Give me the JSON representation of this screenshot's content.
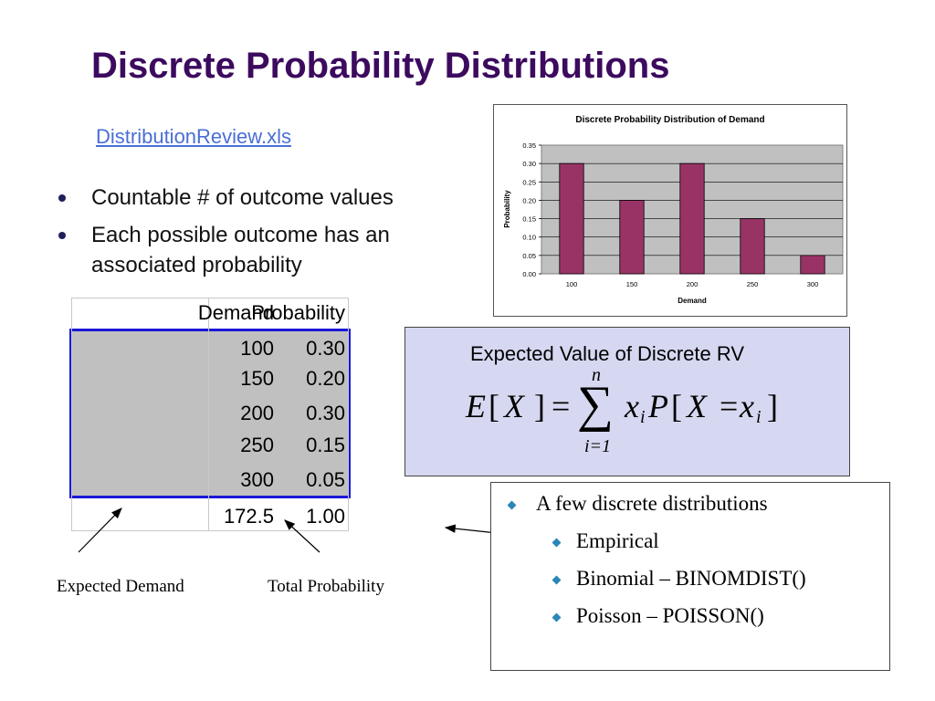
{
  "title": "Discrete Probability Distributions",
  "file_link": "DistributionReview.xls",
  "bullets": [
    "Countable # of outcome values",
    "Each possible outcome has an associated probability"
  ],
  "table": {
    "headers": [
      "Demand",
      "Probability"
    ],
    "rows": [
      {
        "demand": "100",
        "probability": "0.30"
      },
      {
        "demand": "150",
        "probability": "0.20"
      },
      {
        "demand": "200",
        "probability": "0.30"
      },
      {
        "demand": "250",
        "probability": "0.15"
      },
      {
        "demand": "300",
        "probability": "0.05"
      }
    ],
    "totals": {
      "demand": "172.5",
      "probability": "1.00"
    }
  },
  "captions": {
    "expected_demand": "Expected Demand",
    "total_probability": "Total Probability"
  },
  "formula": {
    "title": "Expected Value of Discrete RV",
    "E": "E",
    "X": "X",
    "eq": "=",
    "sum": "∑",
    "upper": "n",
    "lower": "i=1",
    "x": "x",
    "i": "i",
    "P": "P",
    "X2": "X",
    "eq2": "=",
    "x2": "x",
    "i2": "i",
    "lb1": "[",
    "rb1": "]",
    "lb2": "[",
    "rb2": "]"
  },
  "distributions": {
    "heading": "A few discrete distributions",
    "items": [
      "Empirical",
      "Binomial – BINOMDIST()",
      "Poisson – POISSON()"
    ],
    "bullet_color": "#2a86b8"
  },
  "colors": {
    "title": "#3c0a5e",
    "link": "#4a6fd6",
    "bar": "#993366",
    "plot_bg": "#c0c0c0",
    "table_border": "#1a18d6",
    "formula_bg": "#d6d8f1"
  },
  "chart_data": {
    "type": "bar",
    "title": "Discrete Probability Distribution of Demand",
    "xlabel": "Demand",
    "ylabel": "Probability",
    "categories": [
      "100",
      "150",
      "200",
      "250",
      "300"
    ],
    "values": [
      0.3,
      0.2,
      0.3,
      0.15,
      0.05
    ],
    "ylim": [
      0,
      0.35
    ],
    "yticks": [
      "0.00",
      "0.05",
      "0.10",
      "0.15",
      "0.20",
      "0.25",
      "0.30",
      "0.35"
    ],
    "grid": true,
    "legend": "none"
  }
}
